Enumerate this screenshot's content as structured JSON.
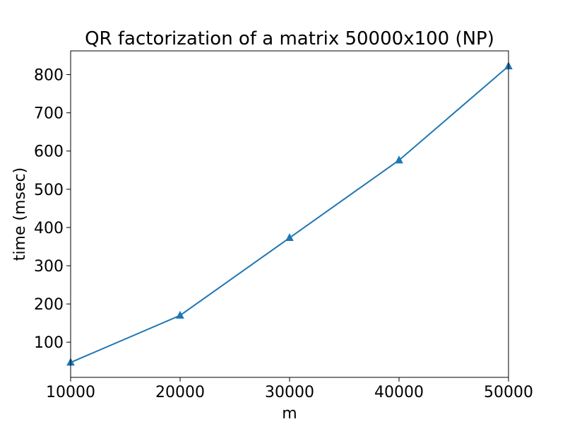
{
  "chart_data": {
    "type": "line",
    "title": "QR factorization of a matrix 50000x100 (NP)",
    "xlabel": "m",
    "ylabel": "time (msec)",
    "xlim": [
      10000,
      50000
    ],
    "ylim": [
      8,
      862
    ],
    "x_ticks": [
      10000,
      20000,
      30000,
      40000,
      50000
    ],
    "y_ticks": [
      100,
      200,
      300,
      400,
      500,
      600,
      700,
      800
    ],
    "grid": false,
    "legend": "none",
    "series": [
      {
        "color": "#1f77b4",
        "marker": "triangle-up",
        "x": [
          10000,
          20000,
          30000,
          40000,
          50000
        ],
        "y": [
          47,
          170,
          373,
          576,
          822
        ]
      }
    ]
  }
}
